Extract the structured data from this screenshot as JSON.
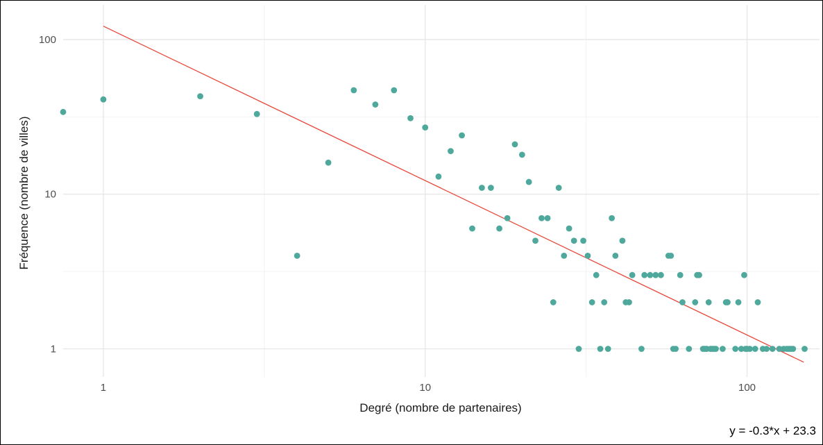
{
  "chart_data": {
    "type": "scatter",
    "title": "",
    "xlabel": "Degré (nombre de partenaires)",
    "ylabel": "Fréquence (nombre de villes)",
    "x_scale": "log10",
    "y_scale": "log10",
    "xlim": [
      0.75,
      168
    ],
    "ylim": [
      0.7,
      145
    ],
    "x_ticks": [
      {
        "value": 1,
        "label": "1"
      },
      {
        "value": 10,
        "label": "10"
      },
      {
        "value": 100,
        "label": "100"
      }
    ],
    "y_ticks": [
      {
        "value": 1,
        "label": "1"
      },
      {
        "value": 10,
        "label": "10"
      },
      {
        "value": 100,
        "label": "100"
      }
    ],
    "grid": true,
    "point_color": "#4fa89c",
    "line_color": "#e8473a",
    "points": [
      [
        0.75,
        34
      ],
      [
        1,
        41
      ],
      [
        2,
        43
      ],
      [
        3,
        33
      ],
      [
        4,
        4
      ],
      [
        5,
        16
      ],
      [
        6,
        47
      ],
      [
        7,
        38
      ],
      [
        8,
        47
      ],
      [
        9,
        31
      ],
      [
        10,
        27
      ],
      [
        11,
        13
      ],
      [
        12,
        19
      ],
      [
        13,
        24
      ],
      [
        14,
        6
      ],
      [
        15,
        11
      ],
      [
        16,
        11
      ],
      [
        17,
        6
      ],
      [
        18,
        7
      ],
      [
        19,
        21
      ],
      [
        20,
        18
      ],
      [
        21,
        12
      ],
      [
        22,
        5
      ],
      [
        23,
        7
      ],
      [
        24,
        7
      ],
      [
        25,
        2
      ],
      [
        26,
        11
      ],
      [
        27,
        4
      ],
      [
        28,
        6
      ],
      [
        29,
        5
      ],
      [
        30,
        1
      ],
      [
        31,
        5
      ],
      [
        32,
        4
      ],
      [
        33,
        2
      ],
      [
        34,
        3
      ],
      [
        35,
        1
      ],
      [
        36,
        2
      ],
      [
        37,
        1
      ],
      [
        38,
        7
      ],
      [
        39,
        4
      ],
      [
        41,
        5
      ],
      [
        42,
        2
      ],
      [
        43,
        2
      ],
      [
        44,
        3
      ],
      [
        47,
        1
      ],
      [
        48,
        3
      ],
      [
        50,
        3
      ],
      [
        52,
        3
      ],
      [
        54,
        3
      ],
      [
        57,
        4
      ],
      [
        58,
        4
      ],
      [
        59,
        1
      ],
      [
        60,
        1
      ],
      [
        62,
        3
      ],
      [
        63,
        2
      ],
      [
        66,
        1
      ],
      [
        69,
        2
      ],
      [
        70,
        3
      ],
      [
        71,
        3
      ],
      [
        73,
        1
      ],
      [
        74,
        1
      ],
      [
        75,
        1
      ],
      [
        76,
        2
      ],
      [
        77,
        1
      ],
      [
        78,
        1
      ],
      [
        79,
        1
      ],
      [
        80,
        1
      ],
      [
        84,
        1
      ],
      [
        86,
        2
      ],
      [
        87,
        2
      ],
      [
        92,
        1
      ],
      [
        94,
        2
      ],
      [
        96,
        1
      ],
      [
        98,
        3
      ],
      [
        99,
        1
      ],
      [
        100,
        1
      ],
      [
        102,
        1
      ],
      [
        106,
        1
      ],
      [
        108,
        2
      ],
      [
        112,
        1
      ],
      [
        115,
        1
      ],
      [
        120,
        1
      ],
      [
        126,
        1
      ],
      [
        130,
        1
      ],
      [
        133,
        1
      ],
      [
        135,
        1
      ],
      [
        137,
        1
      ],
      [
        139,
        1
      ],
      [
        151,
        1
      ]
    ],
    "fit_line": {
      "x": [
        1,
        150
      ],
      "y": [
        122,
        0.82
      ]
    },
    "annotation": "y = -0.3*x + 23.3"
  }
}
